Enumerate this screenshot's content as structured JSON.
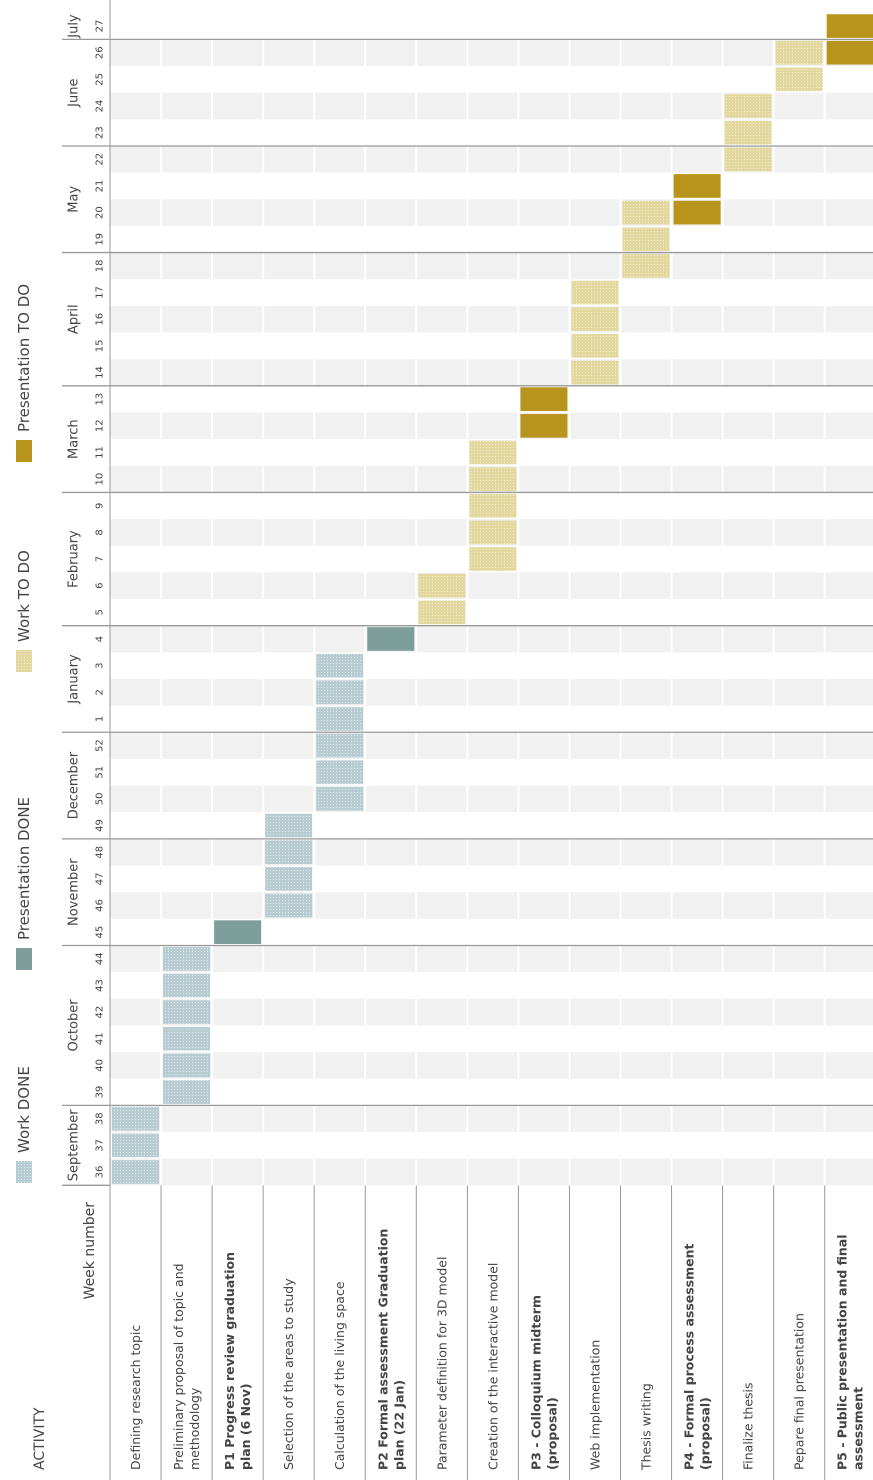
{
  "chart_data": {
    "type": "gantt",
    "header_activity": "ACTIVITY",
    "header_week": "Week number",
    "legend": [
      {
        "label": "Work DONE",
        "color": "#b7ccd0",
        "texture": true
      },
      {
        "label": "Presentation DONE",
        "color": "#7e9e9b",
        "texture": false
      },
      {
        "label": "Work TO DO",
        "color": "#e2d79c",
        "texture": true
      },
      {
        "label": "Presentation TO DO",
        "color": "#b8941c",
        "texture": false
      }
    ],
    "weeks": [
      36,
      37,
      38,
      39,
      40,
      41,
      42,
      43,
      44,
      45,
      46,
      47,
      48,
      49,
      50,
      51,
      52,
      1,
      2,
      3,
      4,
      5,
      6,
      7,
      8,
      9,
      10,
      11,
      12,
      13,
      14,
      15,
      16,
      17,
      18,
      19,
      20,
      21,
      22,
      23,
      24,
      25,
      26,
      27
    ],
    "months": [
      {
        "label": "September",
        "start": 36
      },
      {
        "label": "October",
        "start": 39
      },
      {
        "label": "November",
        "start": 45
      },
      {
        "label": "December",
        "start": 49
      },
      {
        "label": "January",
        "start": 1
      },
      {
        "label": "February",
        "start": 5
      },
      {
        "label": "March",
        "start": 10
      },
      {
        "label": "April",
        "start": 14
      },
      {
        "label": "May",
        "start": 19
      },
      {
        "label": "June",
        "start": 23
      },
      {
        "label": "July",
        "start": 27
      }
    ],
    "activities": [
      {
        "label": [
          "Defining research topic"
        ],
        "bold": false,
        "kind": 0,
        "start": 36,
        "end": 38
      },
      {
        "label": [
          "Preliminary proposal of topic and",
          "methodology"
        ],
        "bold": false,
        "kind": 0,
        "start": 39,
        "end": 44
      },
      {
        "label": [
          "P1 Progress review graduation",
          "plan (6 Nov)"
        ],
        "bold": true,
        "kind": 1,
        "start": 45,
        "end": 45
      },
      {
        "label": [
          "Selection of the areas to study"
        ],
        "bold": false,
        "kind": 0,
        "start": 46,
        "end": 49
      },
      {
        "label": [
          "Calculation of the living space"
        ],
        "bold": false,
        "kind": 0,
        "start": 50,
        "end": 3
      },
      {
        "label": [
          "P2 Formal assessment Graduation",
          "plan (22 Jan)"
        ],
        "bold": true,
        "kind": 1,
        "start": 4,
        "end": 4
      },
      {
        "label": [
          "Parameter definition for 3D model"
        ],
        "bold": false,
        "kind": 2,
        "start": 5,
        "end": 6
      },
      {
        "label": [
          "Creation of the interactive model"
        ],
        "bold": false,
        "kind": 2,
        "start": 7,
        "end": 11
      },
      {
        "label": [
          "P3 - Colloquium midterm",
          "(proposal)"
        ],
        "bold": true,
        "kind": 3,
        "start": 12,
        "end": 13
      },
      {
        "label": [
          "Web implementation"
        ],
        "bold": false,
        "kind": 2,
        "start": 14,
        "end": 17
      },
      {
        "label": [
          "Thesis writing"
        ],
        "bold": false,
        "kind": 2,
        "start": 18,
        "end": 20
      },
      {
        "label": [
          "P4 - Formal process assessment",
          "(proposal)"
        ],
        "bold": true,
        "kind": 3,
        "start": 20,
        "end": 21
      },
      {
        "label": [
          "Finalize thesis"
        ],
        "bold": false,
        "kind": 2,
        "start": 22,
        "end": 24
      },
      {
        "label": [
          "Pepare final presentation"
        ],
        "bold": false,
        "kind": 2,
        "start": 25,
        "end": 26
      },
      {
        "label": [
          "P5 - Public presentation and final",
          "assessment"
        ],
        "bold": true,
        "kind": 3,
        "start": 26,
        "end": 27
      }
    ]
  }
}
